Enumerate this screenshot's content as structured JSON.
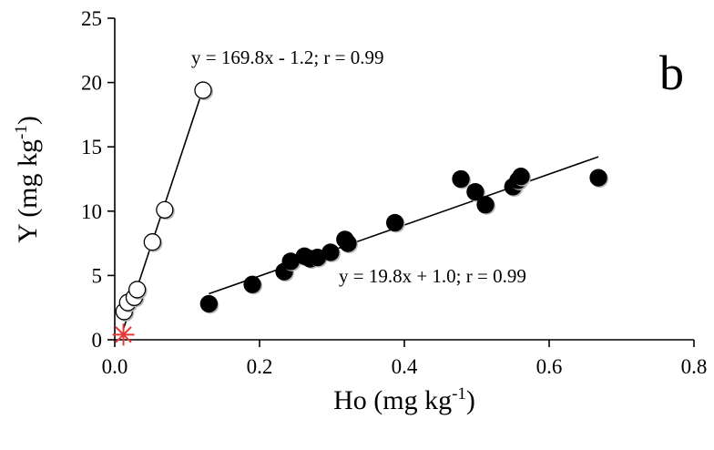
{
  "chart_data": {
    "type": "scatter",
    "panel_label": "b",
    "xlabel": {
      "base": "Ho (mg kg",
      "sup": "-1",
      "end": ")"
    },
    "ylabel": {
      "base": "Y (mg kg",
      "sup": "-1",
      "end": ")"
    },
    "xlim": [
      0,
      0.8
    ],
    "ylim": [
      0,
      25
    ],
    "xticks": [
      "0.0",
      "0.2",
      "0.4",
      "0.6",
      "0.8"
    ],
    "yticks": [
      "0",
      "5",
      "10",
      "15",
      "20",
      "25"
    ],
    "series": [
      {
        "marker": "open-circle",
        "points": [
          {
            "x": 0.013,
            "y": 2.2
          },
          {
            "x": 0.018,
            "y": 2.9
          },
          {
            "x": 0.027,
            "y": 3.3
          },
          {
            "x": 0.031,
            "y": 3.9
          },
          {
            "x": 0.052,
            "y": 7.6
          },
          {
            "x": 0.069,
            "y": 10.1
          },
          {
            "x": 0.122,
            "y": 19.4
          }
        ],
        "fit": {
          "x0": 0.012,
          "x1": 0.12,
          "slope": 169.8,
          "intercept": -1.2
        },
        "equation": "y = 169.8x - 1.2; r = 0.99"
      },
      {
        "marker": "filled-circle",
        "points": [
          {
            "x": 0.13,
            "y": 2.8
          },
          {
            "x": 0.19,
            "y": 4.3
          },
          {
            "x": 0.234,
            "y": 5.3
          },
          {
            "x": 0.243,
            "y": 6.1
          },
          {
            "x": 0.262,
            "y": 6.5
          },
          {
            "x": 0.27,
            "y": 6.3
          },
          {
            "x": 0.28,
            "y": 6.4
          },
          {
            "x": 0.298,
            "y": 6.8
          },
          {
            "x": 0.318,
            "y": 7.8
          },
          {
            "x": 0.322,
            "y": 7.5
          },
          {
            "x": 0.387,
            "y": 9.1
          },
          {
            "x": 0.478,
            "y": 12.5
          },
          {
            "x": 0.498,
            "y": 11.5
          },
          {
            "x": 0.512,
            "y": 10.5
          },
          {
            "x": 0.55,
            "y": 11.9
          },
          {
            "x": 0.557,
            "y": 12.4
          },
          {
            "x": 0.561,
            "y": 12.7
          },
          {
            "x": 0.668,
            "y": 12.6
          }
        ],
        "fit": {
          "x0": 0.13,
          "x1": 0.668,
          "slope": 19.8,
          "intercept": 1.0
        },
        "equation": "y = 19.8x + 1.0; r = 0.99"
      },
      {
        "marker": "asterisk",
        "color": "#e53935",
        "points": [
          {
            "x": 0.012,
            "y": 0.4
          }
        ]
      }
    ]
  }
}
